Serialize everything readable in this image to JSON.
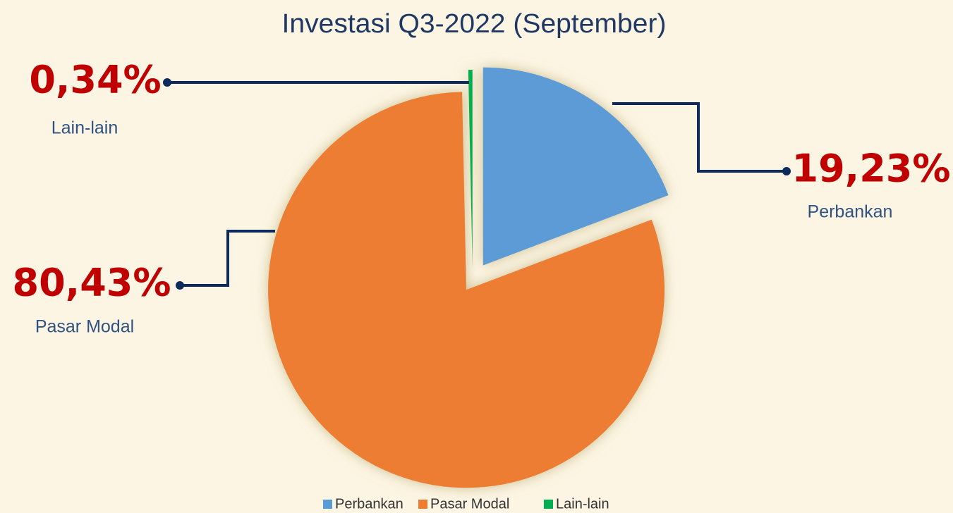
{
  "chart_data": {
    "type": "pie",
    "title": "Investasi Q3-2022 (September)",
    "categories": [
      "Perbankan",
      "Pasar Modal",
      "Lain-lain"
    ],
    "values": [
      19.23,
      80.43,
      0.34
    ],
    "value_labels": [
      "19,23%",
      "80,43%",
      "0,34%"
    ],
    "colors": [
      "#5b9bd5",
      "#ed7d31",
      "#00b050"
    ],
    "legend": "bottom"
  }
}
